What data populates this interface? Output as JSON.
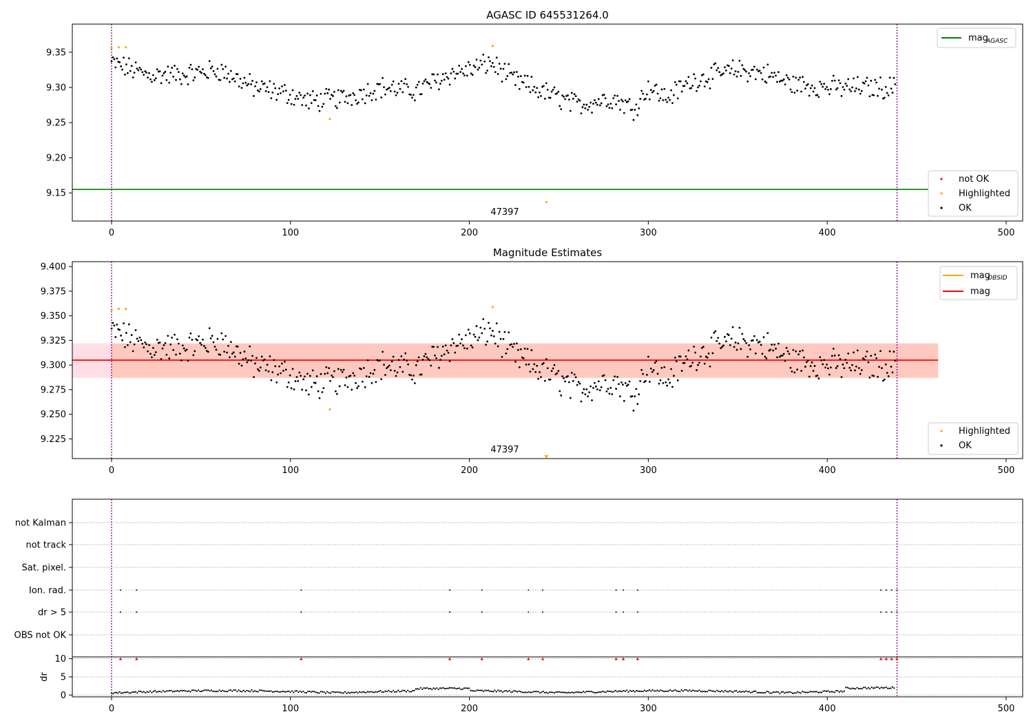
{
  "chart_data": [
    {
      "type": "scatter",
      "title": "AGASC ID 645531264.0",
      "xlim": [
        -22,
        510
      ],
      "ylim": [
        9.11,
        9.39
      ],
      "xticks": [
        0,
        100,
        200,
        300,
        400,
        500
      ],
      "yticks": [
        9.15,
        9.2,
        9.25,
        9.3,
        9.35
      ],
      "vlines": [
        0,
        439
      ],
      "hline": {
        "name": "mag_AGASC",
        "value": 9.155,
        "color": "#008000"
      },
      "annotation": {
        "text": "47397",
        "x": 220
      },
      "highlighted": [
        [
          0,
          9.356
        ],
        [
          4,
          9.357
        ],
        [
          8,
          9.357
        ],
        [
          122,
          9.255
        ],
        [
          213,
          9.359
        ],
        [
          243,
          9.137
        ]
      ],
      "legend_upper": {
        "label": "mag",
        "sub": "AGASC"
      },
      "legend_lower": [
        "not OK",
        "Highlighted",
        "OK"
      ],
      "series_ok_color": "#000000",
      "series_hl_color": "#ffa500",
      "series_bad_color": "#ff0000"
    },
    {
      "type": "scatter",
      "title": "Magnitude Estimates",
      "xlim": [
        -22,
        510
      ],
      "ylim": [
        9.205,
        9.405
      ],
      "xticks": [
        0,
        100,
        200,
        300,
        400,
        500
      ],
      "yticks": [
        9.225,
        9.25,
        9.275,
        9.3,
        9.325,
        9.35,
        9.375,
        9.4
      ],
      "vlines": [
        0,
        439
      ],
      "mag": 9.305,
      "mag_band": [
        9.287,
        9.322
      ],
      "band_x": [
        -22,
        462
      ],
      "annotation": {
        "text": "47397",
        "x": 220
      },
      "highlighted": [
        [
          0,
          9.356
        ],
        [
          4,
          9.357
        ],
        [
          8,
          9.357
        ],
        [
          122,
          9.255
        ],
        [
          213,
          9.359
        ]
      ],
      "highlighted_offscale_x": 243,
      "legend_upper": [
        {
          "label": "mag",
          "sub": "OBSID",
          "color": "#ffa500"
        },
        {
          "label": "mag",
          "sub": "",
          "color": "#ff0000"
        }
      ],
      "legend_lower": [
        "Highlighted",
        "OK"
      ]
    },
    {
      "type": "scatter",
      "title": "",
      "xlim": [
        -22,
        510
      ],
      "xticks": [
        0,
        100,
        200,
        300,
        400,
        500
      ],
      "vlines": [
        0,
        439
      ],
      "flag_rows": [
        "not Kalman",
        "not track",
        "Sat. pixel.",
        "Ion. rad.",
        "dr > 5",
        "OBS not OK"
      ],
      "flag_points": {
        "Ion. rad.": [
          5,
          14,
          106,
          189,
          207,
          233,
          241,
          282,
          286,
          294,
          430,
          433,
          436,
          439
        ],
        "dr > 5": [
          5,
          14,
          106,
          189,
          207,
          233,
          241,
          282,
          286,
          294,
          430,
          433,
          436,
          439
        ]
      },
      "dr_ylabel": "dr",
      "dr_ylim": [
        -0.5,
        10.5
      ],
      "dr_yticks": [
        0,
        5,
        10
      ],
      "dr_clipped_x": [
        5,
        14,
        106,
        189,
        207,
        233,
        241,
        282,
        286,
        294,
        430,
        433,
        436,
        439
      ]
    }
  ]
}
